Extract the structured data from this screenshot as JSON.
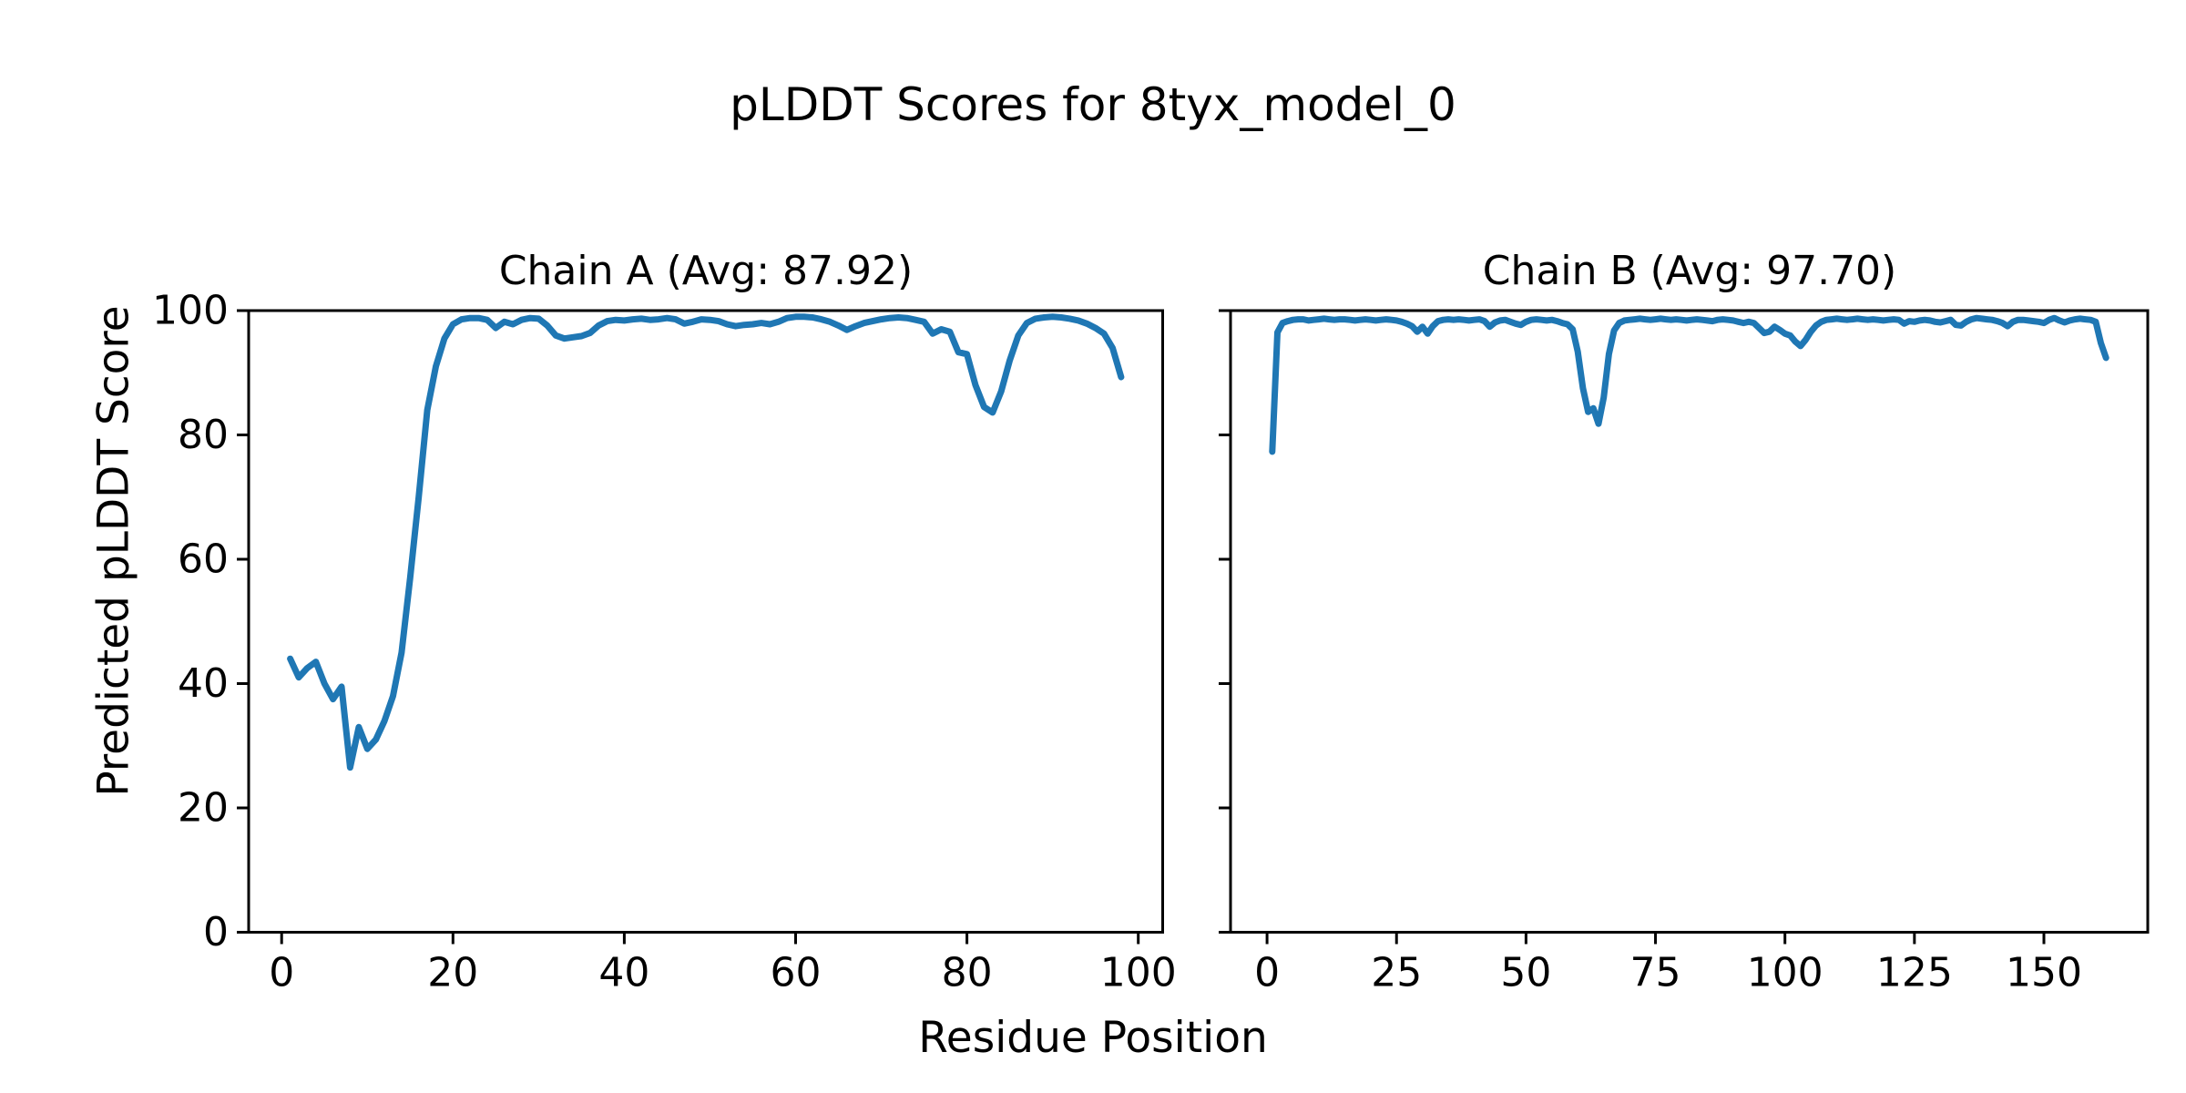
{
  "figure": {
    "title": "pLDDT Scores for 8tyx_model_0",
    "xlabel": "Residue Position",
    "ylabel": "Predicted pLDDT Score",
    "background_color": "#ffffff",
    "text_color": "#000000",
    "line_color": "#1f77b4"
  },
  "chart_data": [
    {
      "type": "line",
      "title": "Chain A (Avg: 87.92)",
      "avg": 87.92,
      "xlabel": "Residue Position",
      "ylabel": "Predicted pLDDT Score",
      "xlim": [
        -3.85,
        102.85
      ],
      "ylim": [
        0,
        100
      ],
      "xticks": [
        0,
        20,
        40,
        60,
        80,
        100
      ],
      "yticks": [
        0,
        20,
        40,
        60,
        80,
        100
      ],
      "show_ytick_labels": true,
      "grid": false,
      "legend": "none",
      "series": [
        {
          "name": "Chain A",
          "x_start": 1,
          "values": [
            44.0,
            41.0,
            42.5,
            43.5,
            40.0,
            37.5,
            39.5,
            26.5,
            33.0,
            29.5,
            31.0,
            34.0,
            38.0,
            45.0,
            57.0,
            70.0,
            84.0,
            91.0,
            95.5,
            97.8,
            98.6,
            98.8,
            98.8,
            98.5,
            97.2,
            98.2,
            97.8,
            98.5,
            98.8,
            98.7,
            97.6,
            96.0,
            95.5,
            95.7,
            95.9,
            96.4,
            97.6,
            98.3,
            98.5,
            98.4,
            98.6,
            98.7,
            98.5,
            98.6,
            98.8,
            98.6,
            97.9,
            98.2,
            98.6,
            98.5,
            98.3,
            97.8,
            97.5,
            97.7,
            97.8,
            98.0,
            97.8,
            98.2,
            98.8,
            99.0,
            99.0,
            98.9,
            98.6,
            98.2,
            97.6,
            96.9,
            97.5,
            98.0,
            98.3,
            98.6,
            98.8,
            98.9,
            98.8,
            98.5,
            98.2,
            96.3,
            97.0,
            96.6,
            93.3,
            93.0,
            88.0,
            84.5,
            83.6,
            87.0,
            92.0,
            96.0,
            98.0,
            98.7,
            98.9,
            99.0,
            98.9,
            98.7,
            98.4,
            97.9,
            97.2,
            96.3,
            94.0,
            89.3
          ]
        }
      ]
    },
    {
      "type": "line",
      "title": "Chain B (Avg: 97.70)",
      "avg": 97.7,
      "xlabel": "Residue Position",
      "ylabel": "Predicted pLDDT Score",
      "xlim": [
        -7.05,
        170.05
      ],
      "ylim": [
        0,
        100
      ],
      "xticks": [
        0,
        25,
        50,
        75,
        100,
        125,
        150
      ],
      "yticks": [
        0,
        20,
        40,
        60,
        80,
        100
      ],
      "show_ytick_labels": false,
      "grid": false,
      "legend": "none",
      "series": [
        {
          "name": "Chain B",
          "x_start": 1,
          "values": [
            77.3,
            96.5,
            98.0,
            98.3,
            98.5,
            98.6,
            98.6,
            98.4,
            98.5,
            98.6,
            98.7,
            98.6,
            98.5,
            98.6,
            98.6,
            98.5,
            98.4,
            98.5,
            98.6,
            98.5,
            98.4,
            98.5,
            98.6,
            98.5,
            98.4,
            98.2,
            97.9,
            97.5,
            96.6,
            97.4,
            96.3,
            97.5,
            98.3,
            98.5,
            98.6,
            98.5,
            98.6,
            98.5,
            98.4,
            98.5,
            98.6,
            98.3,
            97.4,
            98.1,
            98.4,
            98.5,
            98.2,
            97.9,
            97.7,
            98.2,
            98.5,
            98.6,
            98.5,
            98.4,
            98.5,
            98.3,
            98.0,
            97.8,
            97.0,
            93.4,
            87.5,
            83.7,
            84.3,
            81.8,
            86.0,
            93.0,
            96.8,
            98.0,
            98.4,
            98.5,
            98.6,
            98.7,
            98.6,
            98.5,
            98.6,
            98.7,
            98.6,
            98.5,
            98.6,
            98.5,
            98.4,
            98.5,
            98.6,
            98.5,
            98.4,
            98.3,
            98.5,
            98.6,
            98.5,
            98.4,
            98.2,
            98.0,
            98.2,
            98.0,
            97.2,
            96.4,
            96.6,
            97.4,
            96.9,
            96.3,
            96.0,
            95.0,
            94.3,
            95.3,
            96.6,
            97.6,
            98.2,
            98.5,
            98.6,
            98.7,
            98.6,
            98.5,
            98.6,
            98.7,
            98.6,
            98.5,
            98.6,
            98.5,
            98.4,
            98.5,
            98.6,
            98.5,
            97.9,
            98.3,
            98.2,
            98.4,
            98.5,
            98.4,
            98.2,
            98.1,
            98.3,
            98.5,
            97.7,
            97.6,
            98.2,
            98.6,
            98.8,
            98.7,
            98.6,
            98.5,
            98.3,
            98.0,
            97.5,
            98.2,
            98.5,
            98.5,
            98.4,
            98.3,
            98.2,
            98.0,
            98.5,
            98.8,
            98.4,
            98.1,
            98.4,
            98.6,
            98.7,
            98.6,
            98.5,
            98.2,
            94.8,
            92.4
          ]
        }
      ]
    }
  ]
}
